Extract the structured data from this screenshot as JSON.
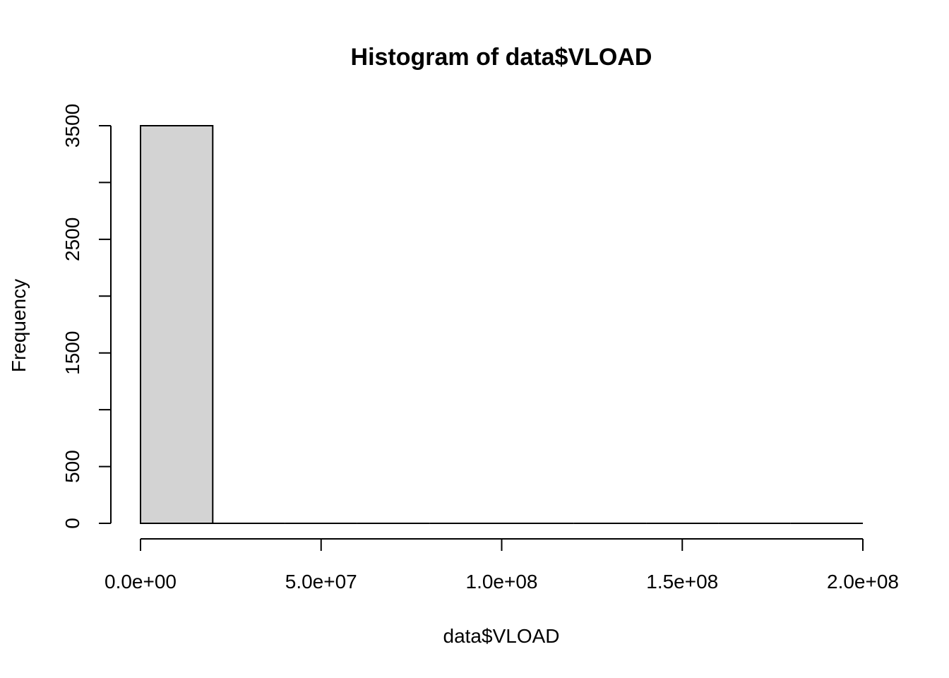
{
  "chart_data": {
    "type": "bar",
    "title": "Histogram of data$VLOAD",
    "xlabel": "data$VLOAD",
    "ylabel": "Frequency",
    "bins": [
      {
        "start": 0,
        "end": 20000000,
        "count": 3500
      },
      {
        "start": 20000000,
        "end": 40000000,
        "count": 0
      },
      {
        "start": 40000000,
        "end": 60000000,
        "count": 0
      },
      {
        "start": 60000000,
        "end": 80000000,
        "count": 0
      },
      {
        "start": 80000000,
        "end": 100000000,
        "count": 0
      },
      {
        "start": 100000000,
        "end": 120000000,
        "count": 0
      },
      {
        "start": 120000000,
        "end": 140000000,
        "count": 0
      },
      {
        "start": 140000000,
        "end": 160000000,
        "count": 0
      },
      {
        "start": 160000000,
        "end": 180000000,
        "count": 0
      },
      {
        "start": 180000000,
        "end": 200000000,
        "count": 0
      }
    ],
    "xlim": [
      0,
      200000000
    ],
    "ylim": [
      0,
      3500
    ],
    "x_ticks": [
      {
        "value": 0,
        "label": "0.0e+00"
      },
      {
        "value": 50000000,
        "label": "5.0e+07"
      },
      {
        "value": 100000000,
        "label": "1.0e+08"
      },
      {
        "value": 150000000,
        "label": "1.5e+08"
      },
      {
        "value": 200000000,
        "label": "2.0e+08"
      }
    ],
    "y_ticks": [
      {
        "value": 0,
        "label": "0"
      },
      {
        "value": 500,
        "label": "500"
      },
      {
        "value": 1000,
        "label": ""
      },
      {
        "value": 1500,
        "label": "1500"
      },
      {
        "value": 2000,
        "label": ""
      },
      {
        "value": 2500,
        "label": "2500"
      },
      {
        "value": 3000,
        "label": ""
      },
      {
        "value": 3500,
        "label": "3500"
      }
    ],
    "grid": false,
    "bar_fill": "#d3d3d3",
    "bar_stroke": "#000000"
  }
}
